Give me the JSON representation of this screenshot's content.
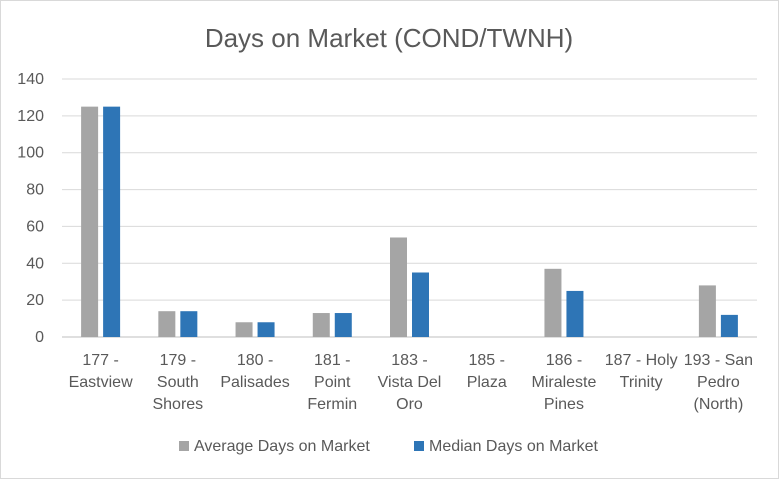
{
  "chart_data": {
    "type": "bar",
    "title": "Days on Market (COND/TWNH)",
    "categories": [
      [
        "177 -",
        "Eastview"
      ],
      [
        "179 -",
        "South",
        "Shores"
      ],
      [
        "180 -",
        "Palisades"
      ],
      [
        "181 -",
        "Point",
        "Fermin"
      ],
      [
        "183 -",
        "Vista Del",
        "Oro"
      ],
      [
        "185 -",
        "Plaza"
      ],
      [
        "186 -",
        "Miraleste",
        "Pines"
      ],
      [
        "187 - Holy",
        "Trinity"
      ],
      [
        "193 - San",
        "Pedro",
        "(North)"
      ]
    ],
    "series": [
      {
        "name": "Average Days on Market",
        "color": "#a5a5a5",
        "values": [
          125,
          14,
          8,
          13,
          54,
          0,
          37,
          0,
          28
        ]
      },
      {
        "name": "Median Days on Market",
        "color": "#2e75b6",
        "values": [
          125,
          14,
          8,
          13,
          35,
          0,
          25,
          0,
          12
        ]
      }
    ],
    "ylim": [
      0,
      140
    ],
    "yticks": [
      0,
      20,
      40,
      60,
      80,
      100,
      120,
      140
    ],
    "grid": true,
    "legend": "bottom"
  }
}
